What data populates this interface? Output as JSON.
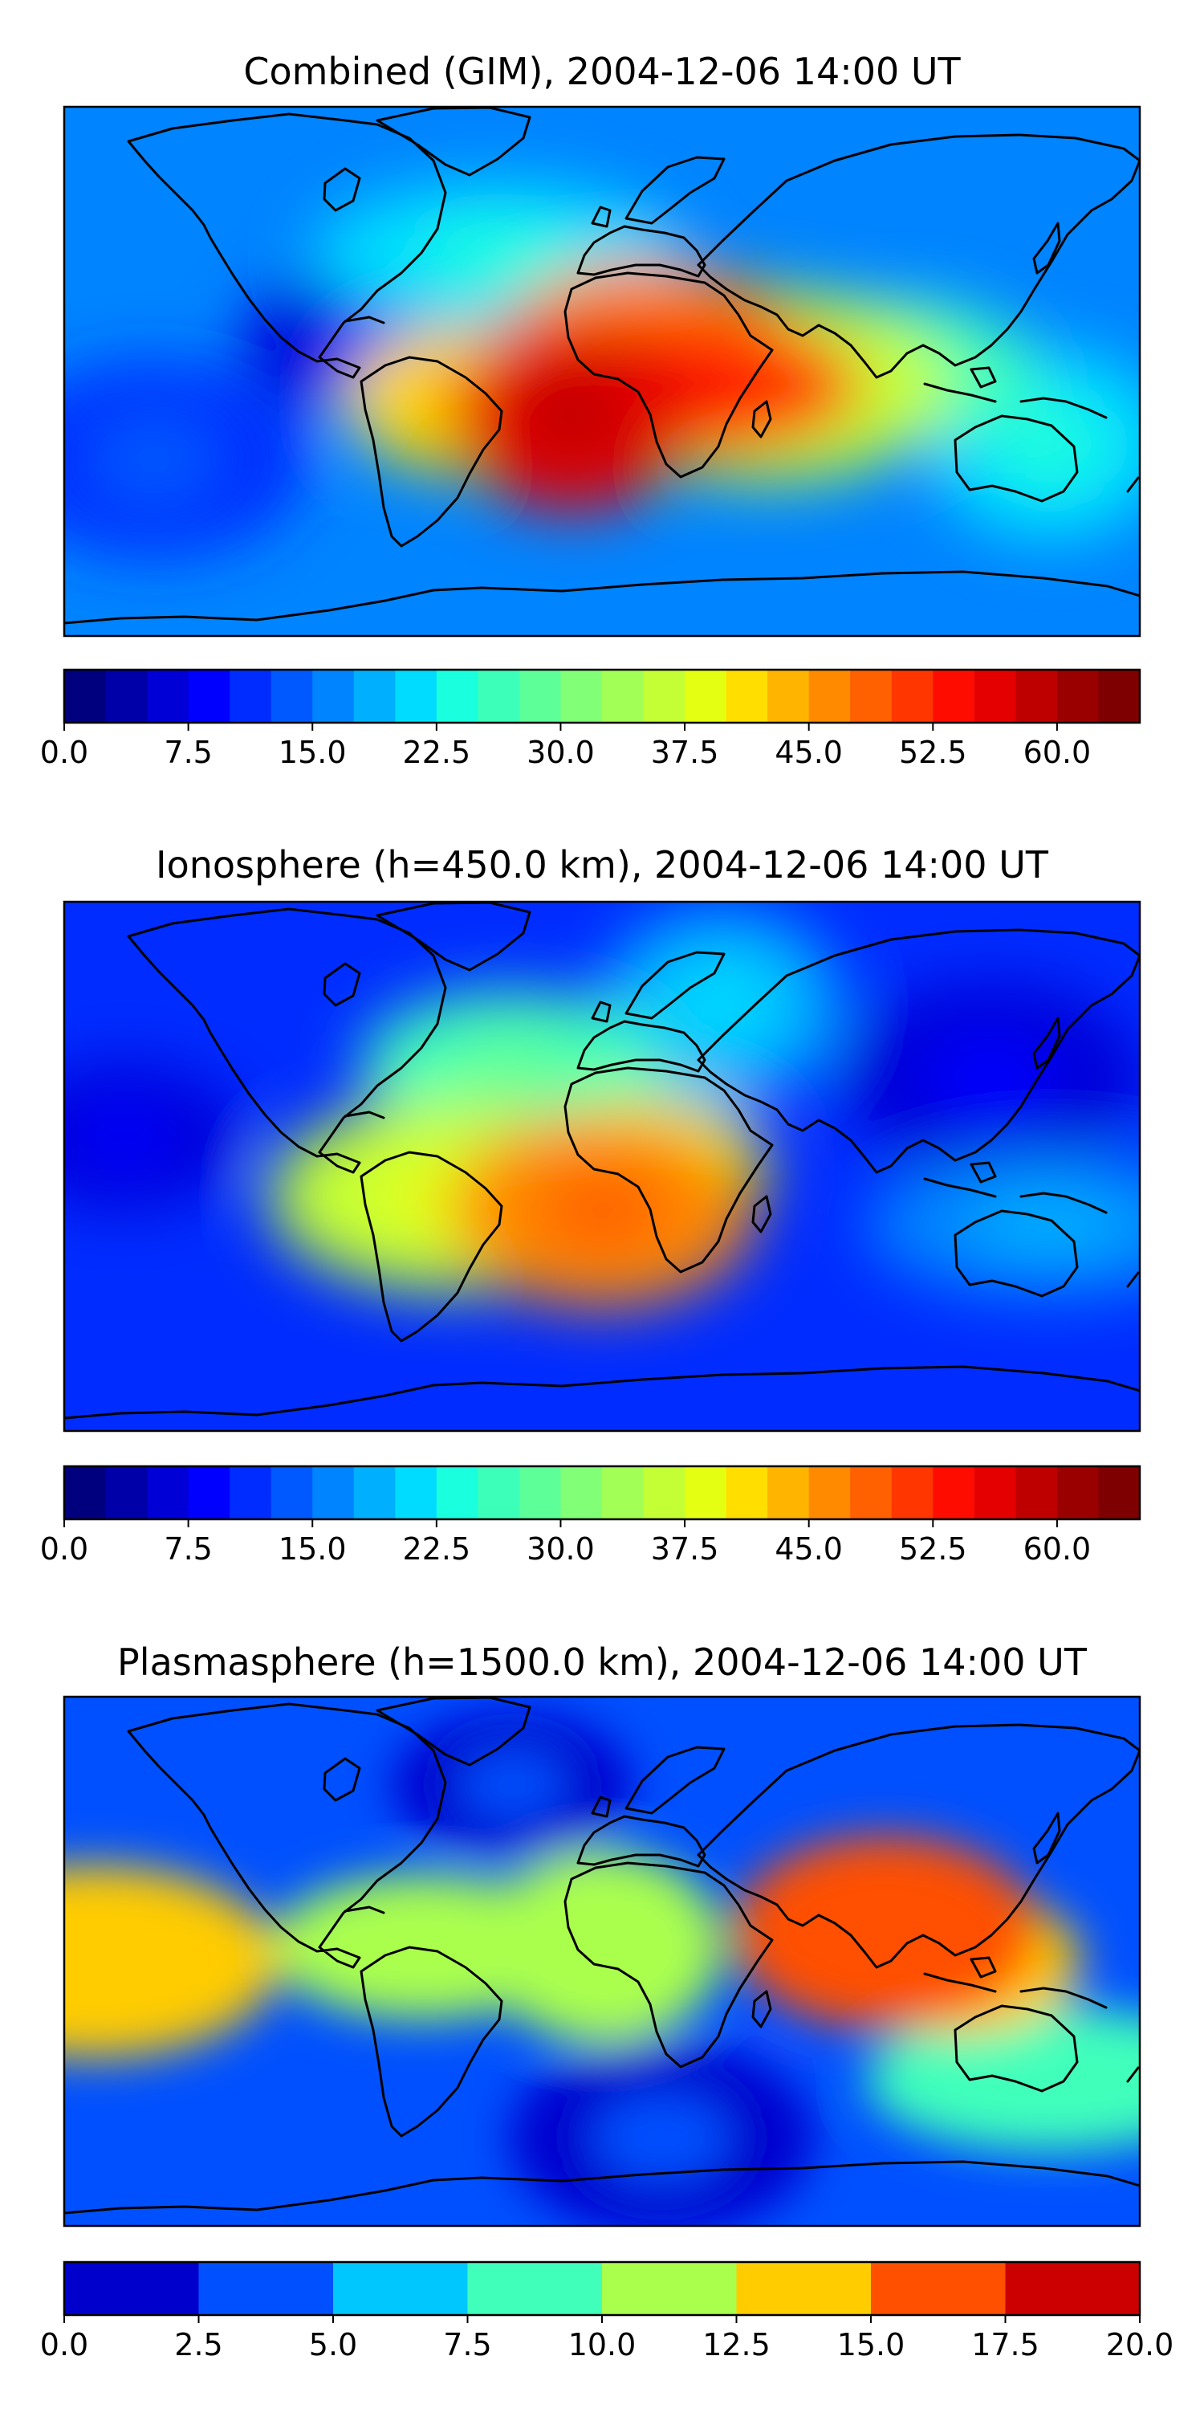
{
  "chart_data": [
    {
      "type": "heatmap",
      "projection": "Plate Carree world map with coastlines",
      "title": "Combined (GIM), 2004-12-06 14:00 UT",
      "colorbar": {
        "levels": [
          0.0,
          2.5,
          5.0,
          7.5,
          10.0,
          12.5,
          15.0,
          17.5,
          20.0,
          22.5,
          25.0,
          27.5,
          30.0,
          32.5,
          35.0,
          37.5,
          40.0,
          42.5,
          45.0,
          47.5,
          50.0,
          52.5,
          55.0,
          57.5,
          60.0,
          62.5,
          65.0
        ],
        "tick_labels": [
          "0.0",
          "7.5",
          "15.0",
          "22.5",
          "30.0",
          "37.5",
          "45.0",
          "52.5",
          "60.0"
        ],
        "range": [
          0,
          65
        ]
      },
      "features": [
        {
          "lon": -80,
          "lat": 10,
          "value": 5
        },
        {
          "lon": -10,
          "lat": -15,
          "value": 55
        },
        {
          "lon": 25,
          "lat": -5,
          "value": 50
        },
        {
          "lon": 15,
          "lat": 5,
          "value": 45
        },
        {
          "lon": -45,
          "lat": -10,
          "value": 40
        },
        {
          "lon": 55,
          "lat": -5,
          "value": 35
        },
        {
          "lon": 95,
          "lat": 0,
          "value": 25
        },
        {
          "lon": -35,
          "lat": 40,
          "value": 20
        },
        {
          "lon": 150,
          "lat": -25,
          "value": 20
        },
        {
          "lon": -150,
          "lat": -30,
          "value": 10
        }
      ]
    },
    {
      "type": "heatmap",
      "projection": "Plate Carree world map with coastlines",
      "title": "Ionosphere  (h=450.0 km), 2004-12-06 14:00 UT",
      "colorbar": {
        "levels": [
          0.0,
          2.5,
          5.0,
          7.5,
          10.0,
          12.5,
          15.0,
          17.5,
          20.0,
          22.5,
          25.0,
          27.5,
          30.0,
          32.5,
          35.0,
          37.5,
          40.0,
          42.5,
          45.0,
          47.5,
          50.0,
          52.5,
          55.0,
          57.5,
          60.0,
          62.5,
          65.0
        ],
        "tick_labels": [
          "0.0",
          "7.5",
          "15.0",
          "22.5",
          "30.0",
          "37.5",
          "45.0",
          "52.5",
          "60.0"
        ],
        "range": [
          0,
          65
        ]
      },
      "features": [
        {
          "lon": -160,
          "lat": 10,
          "value": 5
        },
        {
          "lon": 130,
          "lat": 30,
          "value": 5
        },
        {
          "lon": 0,
          "lat": -15,
          "value": 45
        },
        {
          "lon": 15,
          "lat": 0,
          "value": 38
        },
        {
          "lon": -50,
          "lat": -10,
          "value": 35
        },
        {
          "lon": -30,
          "lat": 35,
          "value": 25
        },
        {
          "lon": 40,
          "lat": 55,
          "value": 18
        },
        {
          "lon": 150,
          "lat": -20,
          "value": 15
        }
      ]
    },
    {
      "type": "heatmap",
      "projection": "Plate Carree world map with coastlines",
      "title": "Plasmasphere (h=1500.0 km), 2004-12-06 14:00 UT",
      "colorbar": {
        "levels": [
          0.0,
          2.5,
          5.0,
          7.5,
          10.0,
          12.5,
          15.0,
          17.5,
          20.0
        ],
        "tick_labels": [
          "0.0",
          "2.5",
          "5.0",
          "7.5",
          "10.0",
          "12.5",
          "15.0",
          "17.5",
          "20.0"
        ],
        "range": [
          0,
          20
        ]
      },
      "features": [
        {
          "lon": -30,
          "lat": 60,
          "value": 1.5
        },
        {
          "lon": 20,
          "lat": -60,
          "value": 1.5
        },
        {
          "lon": 95,
          "lat": 10,
          "value": 16
        },
        {
          "lon": 120,
          "lat": 0,
          "value": 14
        },
        {
          "lon": -170,
          "lat": 0,
          "value": 13
        },
        {
          "lon": 0,
          "lat": 5,
          "value": 11
        },
        {
          "lon": -60,
          "lat": 5,
          "value": 11
        },
        {
          "lon": 150,
          "lat": -40,
          "value": 8
        }
      ]
    }
  ],
  "palettes": {
    "jet26": [
      "#00007f",
      "#0000a9",
      "#0000d6",
      "#0000ff",
      "#002cff",
      "#0058ff",
      "#0084ff",
      "#00b0ff",
      "#00dcff",
      "#1affdd",
      "#3cffba",
      "#5dff99",
      "#80ff77",
      "#a2ff55",
      "#c3ff34",
      "#e5ff12",
      "#ffde00",
      "#ffb400",
      "#ff8a00",
      "#ff6000",
      "#ff3600",
      "#ff0c00",
      "#e50000",
      "#bf0000",
      "#9a0000",
      "#7f0000"
    ],
    "jet8": [
      "#0000cd",
      "#0050ff",
      "#00c8ff",
      "#40ffbb",
      "#aaff4d",
      "#ffcc00",
      "#ff5000",
      "#cd0000"
    ]
  }
}
